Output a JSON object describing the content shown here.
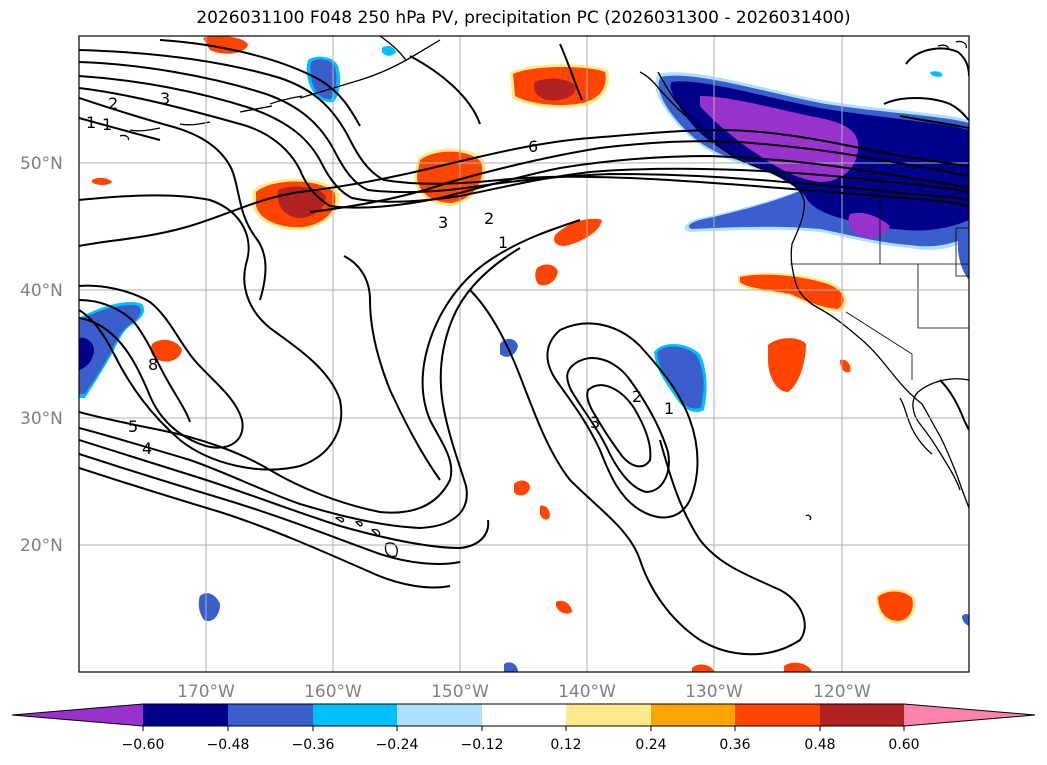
{
  "title": "2026031100 F048 250 hPa PV, precipitation PC (2026031300 - 2026031400)",
  "map": {
    "lon_range": [
      -180,
      -110
    ],
    "lat_range": [
      10,
      60
    ],
    "lat_labels": [
      "50°N",
      "40°N",
      "30°N",
      "20°N"
    ],
    "lon_labels": [
      "170°W",
      "160°W",
      "150°W",
      "140°W",
      "130°W",
      "120°W"
    ],
    "contour_labels": [
      "2",
      "3",
      "1",
      "1",
      "6",
      "3",
      "2",
      "1",
      "8",
      "5",
      "4",
      "3",
      "2",
      "1"
    ]
  },
  "colorbar": {
    "tick_labels": [
      "−0.60",
      "−0.48",
      "−0.36",
      "−0.24",
      "−0.12",
      "0.12",
      "0.24",
      "0.36",
      "0.48",
      "0.60"
    ],
    "colors": [
      "#9932CC",
      "#00008B",
      "#3A5FCD",
      "#00BFFF",
      "#ADDFFF",
      "#FFFFFF",
      "#FFE98C",
      "#FFA500",
      "#FF4500",
      "#B22222",
      "#FF82AB"
    ]
  }
}
